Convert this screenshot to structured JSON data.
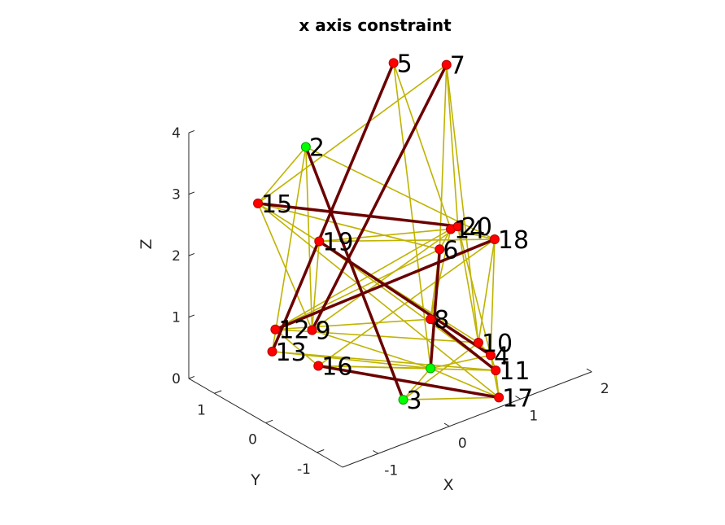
{
  "chart_data": {
    "type": "scatter",
    "title": "x axis constraint",
    "xlabel": "X",
    "ylabel": "Y",
    "zlabel": "Z",
    "x_ticks": [
      "-1",
      "0",
      "1",
      "2"
    ],
    "y_ticks": [
      "-1",
      "0",
      "1"
    ],
    "z_ticks": [
      "0",
      "1",
      "2",
      "3",
      "4"
    ],
    "xlim": [
      -1.5,
      2
    ],
    "ylim": [
      -1.5,
      1.5
    ],
    "zlim": [
      0,
      4
    ],
    "grid": false,
    "colors": {
      "node": "#ff0000",
      "fixed_node": "#00ff00",
      "weak_edge": "#bfb300",
      "strong_edge": "#6b0000",
      "text": "#262626"
    },
    "nodes": [
      {
        "id": "1",
        "x": 0.6,
        "y": -0.3,
        "z": 0.1,
        "fixed": true,
        "label": ""
      },
      {
        "id": "2",
        "x": 0.0,
        "y": 1.3,
        "z": 3.2,
        "fixed": true,
        "label": "2"
      },
      {
        "id": "3",
        "x": 0.0,
        "y": -0.6,
        "z": 0.0,
        "fixed": true,
        "label": "3"
      },
      {
        "id": "4",
        "x": 1.3,
        "y": -0.5,
        "z": 0.1,
        "fixed": false,
        "label": "4"
      },
      {
        "id": "5",
        "x": 0.8,
        "y": 0.7,
        "z": 4.5,
        "fixed": false,
        "label": "5"
      },
      {
        "id": "6",
        "x": 0.8,
        "y": -0.2,
        "z": 1.9,
        "fixed": false,
        "label": "6"
      },
      {
        "id": "7",
        "x": 1.4,
        "y": 0.5,
        "z": 4.3,
        "fixed": false,
        "label": "7"
      },
      {
        "id": "8",
        "x": 0.6,
        "y": -0.3,
        "z": 0.9,
        "fixed": false,
        "label": "8"
      },
      {
        "id": "9",
        "x": -0.2,
        "y": 0.9,
        "z": 0.5,
        "fixed": false,
        "label": "9"
      },
      {
        "id": "10",
        "x": 1.2,
        "y": -0.4,
        "z": 0.3,
        "fixed": false,
        "label": "10"
      },
      {
        "id": "11",
        "x": 1.3,
        "y": -0.6,
        "z": -0.1,
        "fixed": false,
        "label": "11"
      },
      {
        "id": "12",
        "x": -0.5,
        "y": 1.2,
        "z": 0.5,
        "fixed": false,
        "label": "12"
      },
      {
        "id": "13",
        "x": -0.4,
        "y": 1.4,
        "z": 0.0,
        "fixed": false,
        "label": "13"
      },
      {
        "id": "14",
        "x": 1.1,
        "y": 0.0,
        "z": 2.0,
        "fixed": false,
        "label": ""
      },
      {
        "id": "15",
        "x": -0.6,
        "y": 1.4,
        "z": 2.5,
        "fixed": false,
        "label": "15"
      },
      {
        "id": "16",
        "x": -0.4,
        "y": 0.5,
        "z": 0.2,
        "fixed": false,
        "label": "16"
      },
      {
        "id": "17",
        "x": 1.2,
        "y": -0.8,
        "z": -0.4,
        "fixed": false,
        "label": "17"
      },
      {
        "id": "18",
        "x": 1.5,
        "y": -0.3,
        "z": 1.8,
        "fixed": false,
        "label": "18"
      },
      {
        "id": "19",
        "x": -0.1,
        "y": 0.9,
        "z": 1.9,
        "fixed": false,
        "label": "19"
      },
      {
        "id": "20",
        "x": 1.2,
        "y": 0.0,
        "z": 2.0,
        "fixed": false,
        "label": "20"
      }
    ],
    "overlap_label": "14",
    "weak_edges": [
      [
        "2",
        "15"
      ],
      [
        "2",
        "9"
      ],
      [
        "2",
        "18"
      ],
      [
        "2",
        "13"
      ],
      [
        "2",
        "3"
      ],
      [
        "5",
        "19"
      ],
      [
        "5",
        "14"
      ],
      [
        "5",
        "13"
      ],
      [
        "5",
        "1"
      ],
      [
        "7",
        "15"
      ],
      [
        "7",
        "20"
      ],
      [
        "7",
        "10"
      ],
      [
        "7",
        "6"
      ],
      [
        "15",
        "6"
      ],
      [
        "15",
        "10"
      ],
      [
        "15",
        "17"
      ],
      [
        "15",
        "9"
      ],
      [
        "19",
        "14"
      ],
      [
        "19",
        "11"
      ],
      [
        "19",
        "18"
      ],
      [
        "19",
        "9"
      ],
      [
        "19",
        "13"
      ],
      [
        "6",
        "12"
      ],
      [
        "6",
        "8"
      ],
      [
        "14",
        "12"
      ],
      [
        "18",
        "12"
      ],
      [
        "18",
        "10"
      ],
      [
        "18",
        "4"
      ],
      [
        "20",
        "10"
      ],
      [
        "20",
        "4"
      ],
      [
        "20",
        "9"
      ],
      [
        "8",
        "12"
      ],
      [
        "8",
        "14"
      ],
      [
        "9",
        "1"
      ],
      [
        "12",
        "10"
      ],
      [
        "12",
        "16"
      ],
      [
        "13",
        "1"
      ],
      [
        "13",
        "11"
      ],
      [
        "16",
        "1"
      ],
      [
        "16",
        "11"
      ],
      [
        "16",
        "18"
      ],
      [
        "3",
        "1"
      ],
      [
        "3",
        "10"
      ],
      [
        "3",
        "17"
      ],
      [
        "1",
        "17"
      ],
      [
        "1",
        "4"
      ],
      [
        "10",
        "4"
      ],
      [
        "4",
        "11"
      ],
      [
        "11",
        "17"
      ],
      [
        "4",
        "17"
      ],
      [
        "6",
        "14"
      ],
      [
        "14",
        "18"
      ]
    ],
    "strong_edges": [
      [
        "2",
        "3"
      ],
      [
        "5",
        "13"
      ],
      [
        "7",
        "9"
      ],
      [
        "15",
        "20"
      ],
      [
        "6",
        "1"
      ],
      [
        "19",
        "4"
      ],
      [
        "8",
        "11"
      ],
      [
        "18",
        "12"
      ],
      [
        "16",
        "17"
      ]
    ]
  }
}
